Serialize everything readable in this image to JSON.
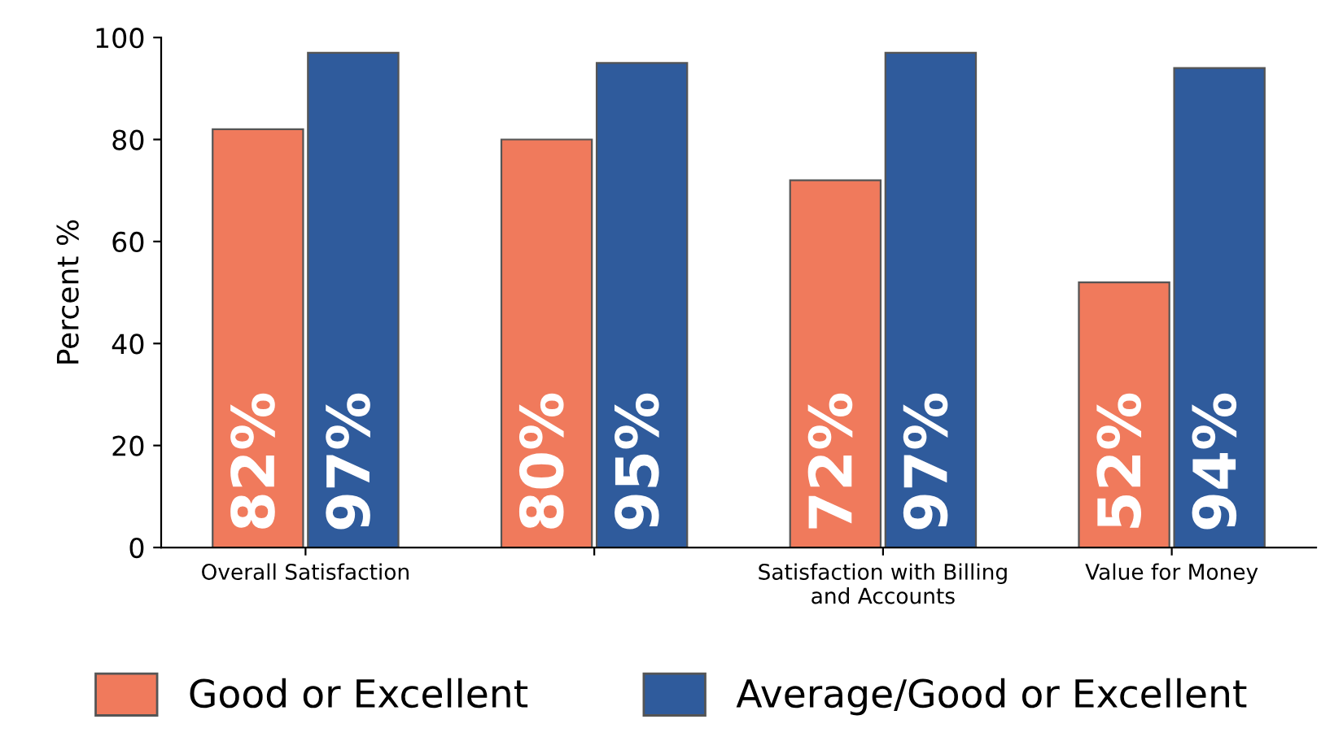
{
  "chart_data": {
    "type": "bar",
    "ylabel": "Percent %",
    "categories": [
      "Overall Satisfaction",
      null,
      "Satisfaction with Billing\nand Accounts",
      "Value for Money"
    ],
    "series": [
      {
        "name": "Good or Excellent",
        "color": "#f07a5c",
        "values": [
          82,
          80,
          72,
          52
        ],
        "value_labels": [
          "82%",
          "80%",
          "72%",
          "52%"
        ]
      },
      {
        "name": "Average/Good or Excellent",
        "color": "#2f5b9c",
        "values": [
          97,
          95,
          97,
          94
        ],
        "value_labels": [
          "97%",
          "95%",
          "97%",
          "94%"
        ]
      }
    ],
    "ylim": [
      0,
      100
    ],
    "yticks": [
      0,
      20,
      40,
      60,
      80,
      100
    ],
    "grid": false,
    "legend": "bottom"
  }
}
